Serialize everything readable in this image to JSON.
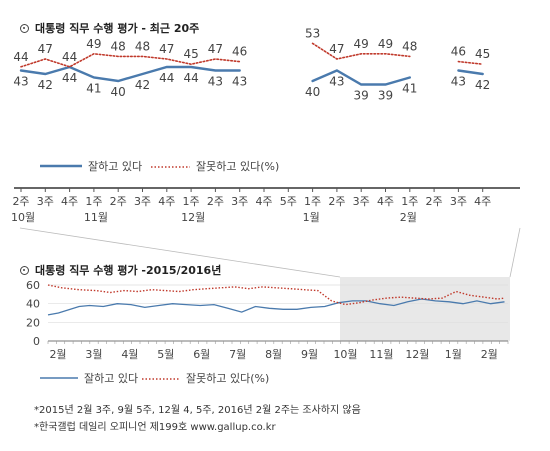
{
  "chart_data": [
    {
      "type": "line",
      "title": "대통령 직무 수행 평가 - 최근 20주",
      "categories": [
        "2주",
        "3주",
        "4주",
        "1주",
        "2주",
        "3주",
        "4주",
        "1주",
        "2주",
        "3주",
        "4주",
        "5주",
        "1주",
        "2주",
        "3주",
        "4주",
        "1주",
        "2주",
        "3주",
        "4주"
      ],
      "month_labels": [
        {
          "index": 0,
          "label": "10월"
        },
        {
          "index": 3,
          "label": "11월"
        },
        {
          "index": 7,
          "label": "12월"
        },
        {
          "index": 12,
          "label": "1월"
        },
        {
          "index": 16,
          "label": "2월"
        }
      ],
      "series": [
        {
          "name": "잘하고 있다",
          "color": "#4a7aad",
          "style": "solid",
          "values": [
            43,
            42,
            44,
            41,
            40,
            42,
            44,
            44,
            43,
            43,
            null,
            null,
            40,
            43,
            39,
            39,
            41,
            null,
            43,
            42
          ]
        },
        {
          "name": "잘못하고 있다(%)",
          "color": "#c0392b",
          "style": "dotted",
          "values": [
            44,
            47,
            44,
            49,
            48,
            48,
            47,
            45,
            47,
            46,
            null,
            null,
            53,
            47,
            49,
            49,
            48,
            null,
            46,
            45
          ]
        }
      ],
      "legend": "bottom-left",
      "grid": false
    },
    {
      "type": "line",
      "title": "대통령 직무 수행 평가 -2015/2016년",
      "ylim": [
        0,
        60
      ],
      "yticks": [
        0,
        20,
        40,
        60
      ],
      "x_months": [
        "2월",
        "3월",
        "4월",
        "5월",
        "6월",
        "7월",
        "8월",
        "9월",
        "10월",
        "11월",
        "12월",
        "1월",
        "2월"
      ],
      "series": [
        {
          "name": "잘하고 있다",
          "color": "#4a7aad",
          "style": "solid"
        },
        {
          "name": "잘못하고 있다(%)",
          "color": "#c0392b",
          "style": "dotted"
        }
      ],
      "highlight_range": "10월–2월",
      "legend": "bottom-left",
      "grid": true
    }
  ],
  "notes": [
    "*2015년 2월 3주, 9월 5주, 12월 4, 5주, 2016년 2월 2주는 조사하지 않음",
    "*한국갤럽 데일리 오피니언 제199호 www.gallup.co.kr"
  ]
}
